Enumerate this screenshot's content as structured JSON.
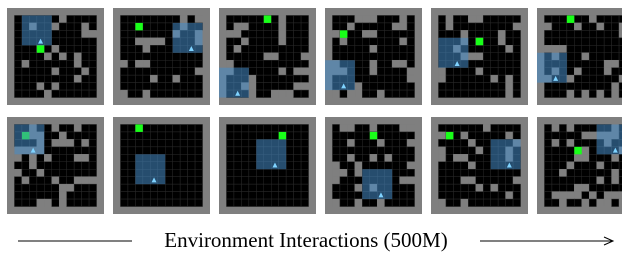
{
  "caption": "Environment Interactions (500M)"
}
